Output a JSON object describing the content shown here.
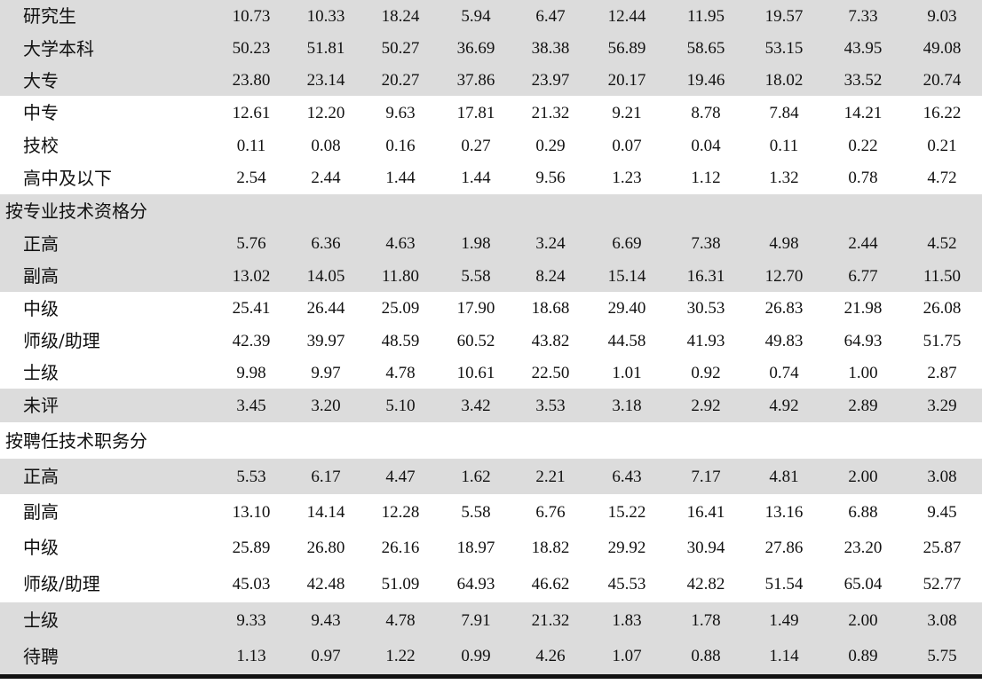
{
  "rows": [
    {
      "label": "研究生",
      "type": "data",
      "values": [
        "10.73",
        "10.33",
        "18.24",
        "5.94",
        "6.47",
        "12.44",
        "11.95",
        "19.57",
        "7.33",
        "9.03"
      ]
    },
    {
      "label": "大学本科",
      "type": "data",
      "values": [
        "50.23",
        "51.81",
        "50.27",
        "36.69",
        "38.38",
        "56.89",
        "58.65",
        "53.15",
        "43.95",
        "49.08"
      ]
    },
    {
      "label": "大专",
      "type": "data",
      "values": [
        "23.80",
        "23.14",
        "20.27",
        "37.86",
        "23.97",
        "20.17",
        "19.46",
        "18.02",
        "33.52",
        "20.74"
      ]
    },
    {
      "label": "中专",
      "type": "data",
      "values": [
        "12.61",
        "12.20",
        "9.63",
        "17.81",
        "21.32",
        "9.21",
        "8.78",
        "7.84",
        "14.21",
        "16.22"
      ]
    },
    {
      "label": "技校",
      "type": "data",
      "values": [
        "0.11",
        "0.08",
        "0.16",
        "0.27",
        "0.29",
        "0.07",
        "0.04",
        "0.11",
        "0.22",
        "0.21"
      ]
    },
    {
      "label": "高中及以下",
      "type": "data",
      "values": [
        "2.54",
        "2.44",
        "1.44",
        "1.44",
        "9.56",
        "1.23",
        "1.12",
        "1.32",
        "0.78",
        "4.72"
      ]
    },
    {
      "label": "按专业技术资格分",
      "type": "section"
    },
    {
      "label": "正高",
      "type": "data",
      "values": [
        "5.76",
        "6.36",
        "4.63",
        "1.98",
        "3.24",
        "6.69",
        "7.38",
        "4.98",
        "2.44",
        "4.52"
      ]
    },
    {
      "label": "副高",
      "type": "data",
      "values": [
        "13.02",
        "14.05",
        "11.80",
        "5.58",
        "8.24",
        "15.14",
        "16.31",
        "12.70",
        "6.77",
        "11.50"
      ]
    },
    {
      "label": "中级",
      "type": "data",
      "values": [
        "25.41",
        "26.44",
        "25.09",
        "17.90",
        "18.68",
        "29.40",
        "30.53",
        "26.83",
        "21.98",
        "26.08"
      ]
    },
    {
      "label": "师级/助理",
      "type": "data",
      "values": [
        "42.39",
        "39.97",
        "48.59",
        "60.52",
        "43.82",
        "44.58",
        "41.93",
        "49.83",
        "64.93",
        "51.75"
      ]
    },
    {
      "label": "士级",
      "type": "data",
      "values": [
        "9.98",
        "9.97",
        "4.78",
        "10.61",
        "22.50",
        "1.01",
        "0.92",
        "0.74",
        "1.00",
        "2.87"
      ]
    },
    {
      "label": "未评",
      "type": "data",
      "values": [
        "3.45",
        "3.20",
        "5.10",
        "3.42",
        "3.53",
        "3.18",
        "2.92",
        "4.92",
        "2.89",
        "3.29"
      ]
    },
    {
      "label": "按聘任技术职务分",
      "type": "section"
    },
    {
      "label": "正高",
      "type": "data",
      "values": [
        "5.53",
        "6.17",
        "4.47",
        "1.62",
        "2.21",
        "6.43",
        "7.17",
        "4.81",
        "2.00",
        "3.08"
      ]
    },
    {
      "label": "副高",
      "type": "data",
      "values": [
        "13.10",
        "14.14",
        "12.28",
        "5.58",
        "6.76",
        "15.22",
        "16.41",
        "13.16",
        "6.88",
        "9.45"
      ]
    },
    {
      "label": "中级",
      "type": "data",
      "values": [
        "25.89",
        "26.80",
        "26.16",
        "18.97",
        "18.82",
        "29.92",
        "30.94",
        "27.86",
        "23.20",
        "25.87"
      ]
    },
    {
      "label": "师级/助理",
      "type": "data",
      "values": [
        "45.03",
        "42.48",
        "51.09",
        "64.93",
        "46.62",
        "45.53",
        "42.82",
        "51.54",
        "65.04",
        "52.77"
      ]
    },
    {
      "label": "士级",
      "type": "data",
      "values": [
        "9.33",
        "9.43",
        "4.78",
        "7.91",
        "21.32",
        "1.83",
        "1.78",
        "1.49",
        "2.00",
        "3.08"
      ]
    },
    {
      "label": "待聘",
      "type": "data",
      "values": [
        "1.13",
        "0.97",
        "1.22",
        "0.99",
        "4.26",
        "1.07",
        "0.88",
        "1.14",
        "0.89",
        "5.75"
      ]
    }
  ],
  "shaded_rows": [
    0,
    1,
    2,
    6,
    7,
    8,
    12,
    14,
    18,
    19
  ],
  "colors": {
    "shade": "#dcdcdc",
    "text": "#111111",
    "rule": "#111111"
  }
}
